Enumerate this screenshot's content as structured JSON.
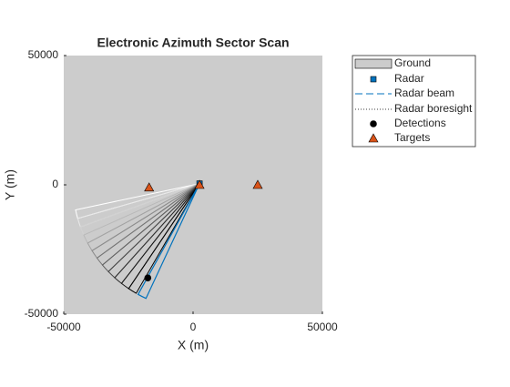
{
  "chart_data": {
    "type": "scatter",
    "title": "Electronic Azimuth Sector Scan",
    "x_label": "X (m)",
    "y_label": "Y (m)",
    "xlim": [
      -50000,
      50000
    ],
    "ylim": [
      -50000,
      50000
    ],
    "xticks": [
      -50000,
      0,
      50000
    ],
    "yticks": [
      -50000,
      0,
      50000
    ],
    "ground": {
      "name": "Ground",
      "color": "#cccccc"
    },
    "series": [
      {
        "name": "Radar",
        "color": "#0072bd",
        "marker": "square",
        "x": [
          2500
        ],
        "values": [
          500
        ]
      },
      {
        "name": "Detections",
        "color": "#000000",
        "marker": "circle",
        "x": [
          -17500
        ],
        "values": [
          -36000
        ]
      },
      {
        "name": "Targets",
        "color": "#d95319",
        "marker": "triangle",
        "x": [
          -17000,
          2500,
          25000
        ],
        "values": [
          -1000,
          0,
          0
        ]
      }
    ],
    "beam": {
      "name": "Radar beam",
      "color": "#0072bd",
      "azimuth": 243,
      "width": 4,
      "range": 49000
    },
    "boresight": {
      "name": "Radar boresight"
    },
    "beam_history": {
      "azimuths": [
        194,
        198,
        202,
        206,
        210,
        214,
        218,
        222,
        226,
        230,
        234,
        238
      ]
    }
  }
}
